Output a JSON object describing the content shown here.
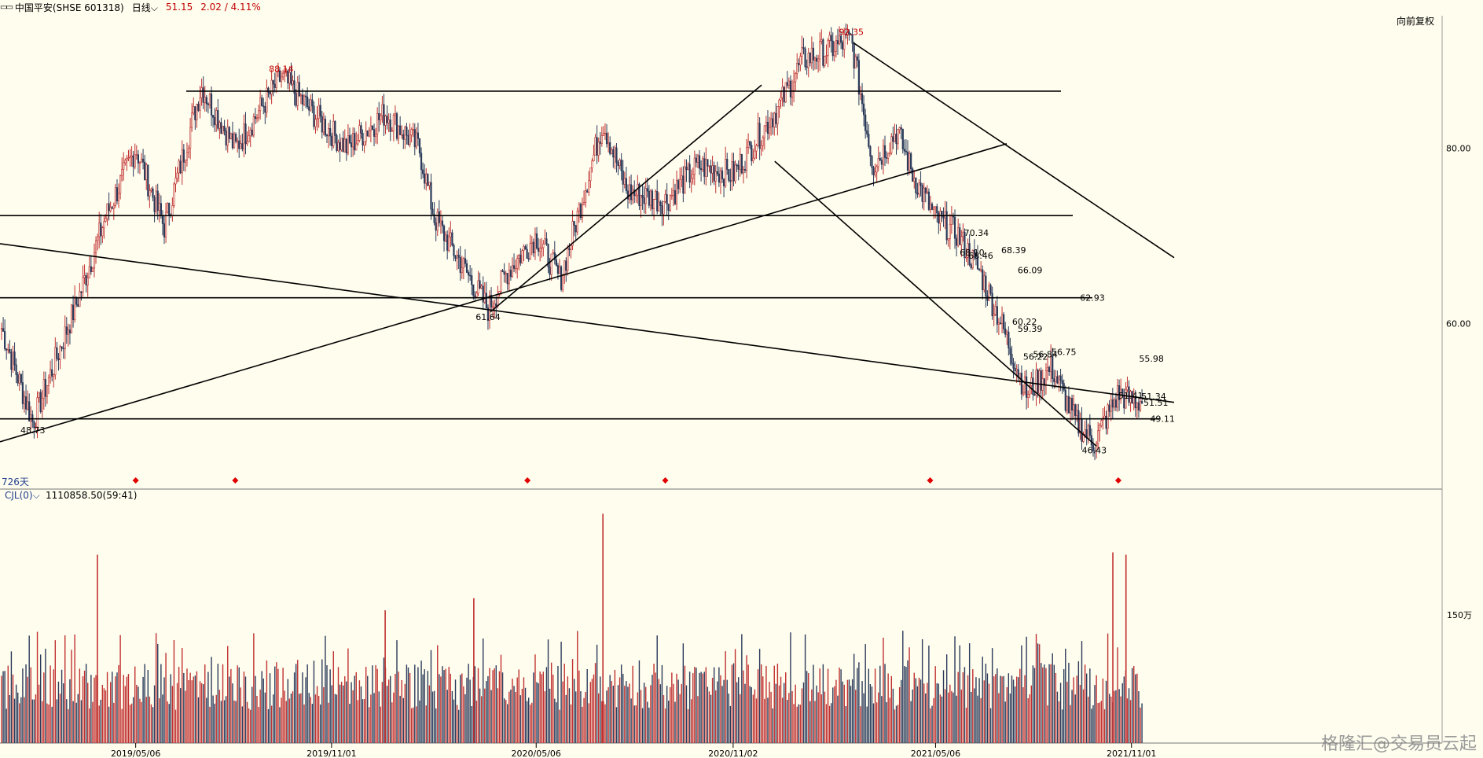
{
  "header": {
    "icon": "panel-toggle-icon",
    "symbol": "中国平安(SHSE 601318)",
    "period": "日线",
    "period_chevron": "chevron-down-icon",
    "price": "51.15",
    "change": "2.02 / 4.11%",
    "adjust_button": "向前复权"
  },
  "main_panel": {
    "day_count": "726天"
  },
  "volume_panel": {
    "indicator": "CJL(0)",
    "indicator_chevron": "chevron-down-icon",
    "value": "1110858.50(59:41)"
  },
  "watermark": "格隆汇@交易员云起",
  "colors": {
    "background": "#fffdee",
    "up": "#c03030",
    "down": "#2a3a5a",
    "line": "#000000",
    "label_red": "#c00000"
  },
  "chart_data": [
    {
      "type": "candlestick",
      "price_axis_ticks": [
        "80.00",
        "60.00"
      ],
      "time_axis_ticks": [
        "2019/05/06",
        "2019/11/01",
        "2020/05/06",
        "2020/11/02",
        "2021/05/06",
        "2021/11/01"
      ],
      "ylim": [
        42,
        96
      ],
      "series": [
        {
          "name": "price",
          "approx_path": [
            [
              "2019/01/02",
              60
            ],
            [
              "2019/02/01",
              48.73
            ],
            [
              "2019/03/15",
              63
            ],
            [
              "2019/04/08",
              72
            ],
            [
              "2019/05/06",
              80
            ],
            [
              "2019/06/01",
              71
            ],
            [
              "2019/07/05",
              87
            ],
            [
              "2019/08/05",
              80
            ],
            [
              "2019/09/16",
              88.14
            ],
            [
              "2019/10/15",
              84
            ],
            [
              "2019/11/15",
              80
            ],
            [
              "2019/12/20",
              84
            ],
            [
              "2020/01/20",
              80
            ],
            [
              "2020/02/03",
              72
            ],
            [
              "2020/03/23",
              61.64
            ],
            [
              "2020/04/10",
              66
            ],
            [
              "2020/05/06",
              70
            ],
            [
              "2020/05/28",
              65
            ],
            [
              "2020/07/06",
              83
            ],
            [
              "2020/07/28",
              75
            ],
            [
              "2020/09/01",
              74
            ],
            [
              "2020/10/01",
              78
            ],
            [
              "2020/11/02",
              77
            ],
            [
              "2020/12/15",
              85
            ],
            [
              "2021/01/04",
              90
            ],
            [
              "2021/02/18",
              92.35
            ],
            [
              "2021/03/10",
              78
            ],
            [
              "2021/04/01",
              82
            ],
            [
              "2021/04/15",
              77
            ],
            [
              "2021/05/06",
              72
            ],
            [
              "2021/05/25",
              70.34
            ],
            [
              "2021/06/15",
              66
            ],
            [
              "2021/07/05",
              60
            ],
            [
              "2021/07/28",
              52
            ],
            [
              "2021/08/20",
              55
            ],
            [
              "2021/09/10",
              49
            ],
            [
              "2021/09/28",
              46.43
            ],
            [
              "2021/10/20",
              52
            ],
            [
              "2021/11/01",
              51.15
            ]
          ]
        }
      ],
      "annotations": [
        "92.35",
        "88.14",
        "61.64",
        "48.73",
        "46.43",
        "70.34",
        "68.10",
        "68.39",
        "68.46",
        "66.09",
        "62.93",
        "60.22",
        "59.39",
        "56.22",
        "56.75",
        "56.84",
        "55.98",
        "51.41",
        "51.34",
        "51.51",
        "49.11"
      ],
      "horizontal_levels": [
        86.5,
        72.3,
        62.93,
        49.11
      ],
      "signal_markers": [
        "2019/05/06",
        "2019/08/05",
        "2020/04/28",
        "2020/09/01",
        "2021/05/01",
        "2021/10/20"
      ]
    },
    {
      "type": "bar",
      "name": "CJL",
      "unit_label": "150万",
      "note": "daily volume, spikes around 2020/07 and 2021/10"
    }
  ]
}
